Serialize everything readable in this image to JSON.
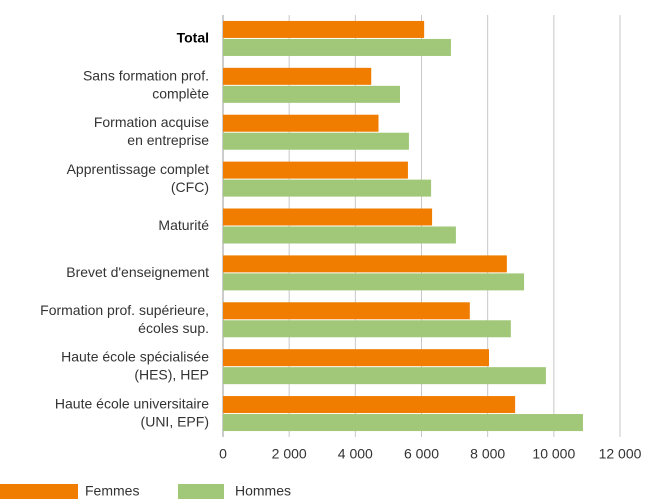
{
  "chart_data": {
    "type": "bar",
    "orientation": "horizontal",
    "categories": [
      [
        "Total"
      ],
      [
        "Sans formation prof.",
        "complète"
      ],
      [
        "Formation acquise",
        "en entreprise"
      ],
      [
        "Apprentissage complet",
        "(CFC)"
      ],
      [
        "Maturité"
      ],
      [
        "Brevet d'enseignement"
      ],
      [
        "Formation prof. supérieure,",
        "écoles sup."
      ],
      [
        "Haute école spécialisée",
        "(HES), HEP"
      ],
      [
        "Haute école universitaire",
        "(UNI, EPF)"
      ]
    ],
    "series": [
      {
        "name": "Femmes",
        "color": "#f07d00",
        "values": [
          6080,
          4480,
          4700,
          5590,
          6320,
          8580,
          7460,
          8040,
          8830
        ]
      },
      {
        "name": "Hommes",
        "color": "#a0c878",
        "values": [
          6890,
          5350,
          5620,
          6290,
          7040,
          9100,
          8700,
          9760,
          10880
        ]
      }
    ],
    "xlim": [
      0,
      12000
    ],
    "xticks": [
      0,
      {
        "value": 2000,
        "label": "2 000"
      },
      {
        "value": 4000,
        "label": "4 000"
      },
      {
        "value": 6000,
        "label": "6 000"
      },
      {
        "value": 8000,
        "label": "8 000"
      },
      {
        "value": 10000,
        "label": "10 000"
      },
      {
        "value": 12000,
        "label": "12 000"
      }
    ],
    "grid": true,
    "legend": "bottom",
    "bold_categories": [
      0
    ]
  }
}
